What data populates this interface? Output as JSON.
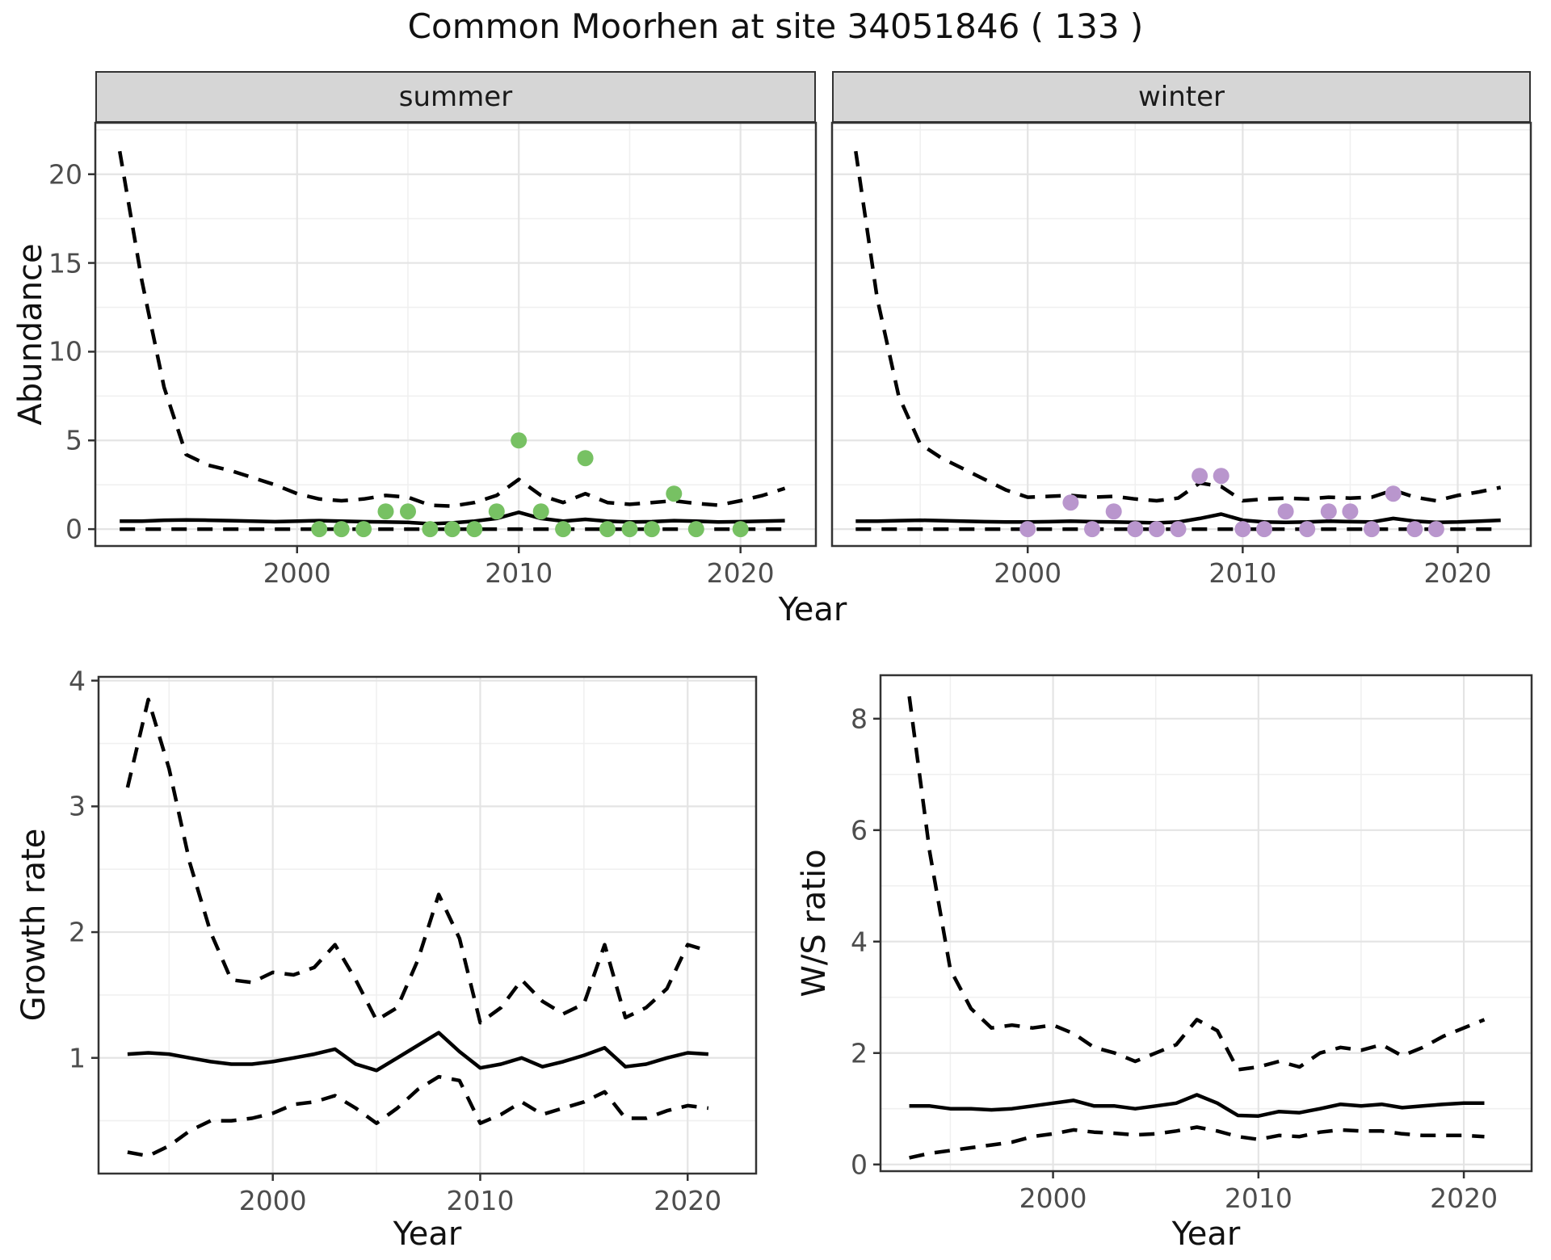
{
  "title": "Common Moorhen at site 34051846 ( 133 )",
  "facet_labels": [
    "summer",
    "winter"
  ],
  "axis_labels": {
    "abundance": "Abundance",
    "year_top": "Year",
    "growth": "Growth rate",
    "year_growth": "Year",
    "ratio": "W/S ratio",
    "year_ratio": "Year"
  },
  "colors": {
    "summer_point": "#77c163",
    "winter_point": "#b996cd",
    "line": "#000000",
    "grid_major": "#e4e4e4",
    "grid_minor": "#f0f0f0",
    "panel_border": "#333333",
    "strip_bg": "#d6d6d6",
    "strip_text": "#1a1a1a",
    "tick_text": "#4d4d4d",
    "title_text": "#111111"
  },
  "chart_data": [
    {
      "id": "abundance-summer",
      "type": "line",
      "facet": "summer",
      "xlabel": "Year",
      "ylabel": "Abundance",
      "x_domain": [
        1990.9,
        2023.4
      ],
      "y_domain": [
        -0.95,
        22.9
      ],
      "x_ticks": [
        2000,
        2010,
        2020
      ],
      "x_minor": [
        1995,
        2005,
        2015
      ],
      "y_ticks": [
        0,
        5,
        10,
        15,
        20
      ],
      "y_minor": [
        2.5,
        7.5,
        12.5,
        17.5,
        22.5
      ],
      "grid": true,
      "legend": "none",
      "line_years": [
        1992,
        1993,
        1994,
        1995,
        1996,
        1997,
        1998,
        1999,
        2000,
        2001,
        2002,
        2003,
        2004,
        2005,
        2006,
        2007,
        2008,
        2009,
        2010,
        2011,
        2012,
        2013,
        2014,
        2015,
        2016,
        2017,
        2018,
        2019,
        2020,
        2021,
        2022
      ],
      "series": [
        {
          "name": "upper_95ci",
          "style": "dashed",
          "values": [
            21.3,
            14.0,
            8.0,
            4.2,
            3.6,
            3.3,
            2.9,
            2.5,
            2.0,
            1.7,
            1.6,
            1.7,
            1.9,
            1.8,
            1.35,
            1.3,
            1.5,
            1.9,
            2.8,
            1.9,
            1.5,
            2.0,
            1.5,
            1.4,
            1.5,
            1.6,
            1.45,
            1.35,
            1.6,
            1.9,
            2.3
          ]
        },
        {
          "name": "median",
          "style": "solid",
          "values": [
            0.45,
            0.45,
            0.5,
            0.52,
            0.5,
            0.48,
            0.45,
            0.42,
            0.45,
            0.48,
            0.45,
            0.42,
            0.4,
            0.38,
            0.3,
            0.35,
            0.45,
            0.6,
            0.95,
            0.6,
            0.45,
            0.55,
            0.45,
            0.4,
            0.42,
            0.48,
            0.45,
            0.4,
            0.42,
            0.45,
            0.48
          ]
        },
        {
          "name": "lower_95ci",
          "style": "dashed",
          "values": [
            0,
            0,
            0,
            0,
            0,
            0,
            0,
            0,
            0,
            0,
            0,
            0,
            0,
            0,
            0,
            0,
            0,
            0,
            0,
            0,
            0,
            0,
            0,
            0,
            0,
            0,
            0,
            0,
            0,
            0,
            0
          ]
        }
      ],
      "points": {
        "name": "observed_counts",
        "color": "#77c163",
        "data": [
          [
            2001,
            0
          ],
          [
            2002,
            0
          ],
          [
            2003,
            0
          ],
          [
            2004,
            1
          ],
          [
            2005,
            1
          ],
          [
            2006,
            0
          ],
          [
            2007,
            0
          ],
          [
            2008,
            0
          ],
          [
            2009,
            1
          ],
          [
            2010,
            5
          ],
          [
            2011,
            1
          ],
          [
            2012,
            0
          ],
          [
            2013,
            4
          ],
          [
            2014,
            0
          ],
          [
            2015,
            0
          ],
          [
            2016,
            0
          ],
          [
            2017,
            2
          ],
          [
            2018,
            0
          ],
          [
            2020,
            0
          ]
        ]
      }
    },
    {
      "id": "abundance-winter",
      "type": "line",
      "facet": "winter",
      "xlabel": "Year",
      "ylabel": "Abundance",
      "x_domain": [
        1990.9,
        2023.4
      ],
      "y_domain": [
        -0.95,
        22.9
      ],
      "x_ticks": [
        2000,
        2010,
        2020
      ],
      "x_minor": [
        1995,
        2005,
        2015
      ],
      "y_ticks": [
        0,
        5,
        10,
        15,
        20
      ],
      "y_minor": [
        2.5,
        7.5,
        12.5,
        17.5,
        22.5
      ],
      "grid": true,
      "legend": "none",
      "line_years": [
        1992,
        1993,
        1994,
        1995,
        1996,
        1997,
        1998,
        1999,
        2000,
        2001,
        2002,
        2003,
        2004,
        2005,
        2006,
        2007,
        2008,
        2009,
        2010,
        2011,
        2012,
        2013,
        2014,
        2015,
        2016,
        2017,
        2018,
        2019,
        2020,
        2021,
        2022
      ],
      "series": [
        {
          "name": "upper_95ci",
          "style": "dashed",
          "values": [
            21.3,
            13.0,
            7.5,
            4.8,
            4.0,
            3.4,
            2.8,
            2.2,
            1.8,
            1.85,
            1.9,
            1.8,
            1.85,
            1.7,
            1.6,
            1.75,
            2.6,
            2.4,
            1.6,
            1.7,
            1.75,
            1.7,
            1.8,
            1.75,
            1.8,
            2.2,
            1.8,
            1.6,
            1.9,
            2.1,
            2.35
          ]
        },
        {
          "name": "median",
          "style": "solid",
          "values": [
            0.45,
            0.45,
            0.48,
            0.5,
            0.48,
            0.45,
            0.42,
            0.4,
            0.4,
            0.42,
            0.45,
            0.42,
            0.4,
            0.38,
            0.35,
            0.4,
            0.6,
            0.85,
            0.5,
            0.4,
            0.38,
            0.4,
            0.45,
            0.42,
            0.4,
            0.6,
            0.45,
            0.38,
            0.4,
            0.45,
            0.5
          ]
        },
        {
          "name": "lower_95ci",
          "style": "dashed",
          "values": [
            0,
            0,
            0,
            0,
            0,
            0,
            0,
            0,
            0,
            0,
            0,
            0,
            0,
            0,
            0,
            0,
            0,
            0,
            0,
            0,
            0,
            0,
            0,
            0,
            0,
            0,
            0,
            0,
            0,
            0,
            0
          ]
        }
      ],
      "points": {
        "name": "observed_counts",
        "color": "#b996cd",
        "data": [
          [
            2000,
            0
          ],
          [
            2002,
            1.5
          ],
          [
            2003,
            0
          ],
          [
            2004,
            1
          ],
          [
            2005,
            0
          ],
          [
            2006,
            0
          ],
          [
            2007,
            0
          ],
          [
            2008,
            3
          ],
          [
            2009,
            3
          ],
          [
            2010,
            0
          ],
          [
            2011,
            0
          ],
          [
            2012,
            1
          ],
          [
            2013,
            0
          ],
          [
            2014,
            1
          ],
          [
            2015,
            1
          ],
          [
            2016,
            0
          ],
          [
            2017,
            2
          ],
          [
            2018,
            0
          ],
          [
            2019,
            0
          ]
        ]
      }
    },
    {
      "id": "growth-rate",
      "type": "line",
      "xlabel": "Year",
      "ylabel": "Growth rate",
      "x_domain": [
        1991.6,
        2023.3
      ],
      "y_domain": [
        0.08,
        4.03
      ],
      "x_ticks": [
        2000,
        2010,
        2020
      ],
      "x_minor": [
        1995,
        2005,
        2015
      ],
      "y_ticks": [
        1,
        2,
        3,
        4
      ],
      "y_minor": [
        0.5,
        1.5,
        2.5,
        3.5
      ],
      "grid": true,
      "legend": "none",
      "line_years": [
        1993,
        1994,
        1995,
        1996,
        1997,
        1998,
        1999,
        2000,
        2001,
        2002,
        2003,
        2004,
        2005,
        2006,
        2007,
        2008,
        2009,
        2010,
        2011,
        2012,
        2013,
        2014,
        2015,
        2016,
        2017,
        2018,
        2019,
        2020,
        2021
      ],
      "series": [
        {
          "name": "upper_95ci",
          "style": "dashed",
          "values": [
            3.15,
            3.85,
            3.3,
            2.55,
            2.0,
            1.62,
            1.6,
            1.68,
            1.66,
            1.72,
            1.9,
            1.62,
            1.3,
            1.4,
            1.78,
            2.3,
            1.95,
            1.28,
            1.4,
            1.62,
            1.45,
            1.35,
            1.43,
            1.9,
            1.32,
            1.4,
            1.55,
            1.9,
            1.85
          ]
        },
        {
          "name": "median",
          "style": "solid",
          "values": [
            1.03,
            1.04,
            1.03,
            1.0,
            0.97,
            0.95,
            0.95,
            0.97,
            1.0,
            1.03,
            1.07,
            0.95,
            0.9,
            1.0,
            1.1,
            1.2,
            1.05,
            0.92,
            0.95,
            1.0,
            0.93,
            0.97,
            1.02,
            1.08,
            0.93,
            0.95,
            1.0,
            1.04,
            1.03
          ]
        },
        {
          "name": "lower_95ci",
          "style": "dashed",
          "values": [
            0.25,
            0.22,
            0.3,
            0.42,
            0.5,
            0.5,
            0.52,
            0.56,
            0.63,
            0.65,
            0.7,
            0.6,
            0.48,
            0.6,
            0.75,
            0.85,
            0.82,
            0.48,
            0.55,
            0.65,
            0.55,
            0.6,
            0.65,
            0.73,
            0.52,
            0.52,
            0.58,
            0.62,
            0.6
          ]
        }
      ],
      "points": {
        "name": "none",
        "color": null,
        "data": []
      }
    },
    {
      "id": "ws-ratio",
      "type": "line",
      "xlabel": "Year",
      "ylabel": "W/S ratio",
      "x_domain": [
        1991.6,
        2023.3
      ],
      "y_domain": [
        -0.12,
        8.78
      ],
      "x_ticks": [
        2000,
        2010,
        2020
      ],
      "x_minor": [
        1995,
        2005,
        2015
      ],
      "y_ticks": [
        0,
        2,
        4,
        6,
        8
      ],
      "y_minor": [
        1,
        3,
        5,
        7
      ],
      "grid": true,
      "legend": "none",
      "line_years": [
        1993,
        1994,
        1995,
        1996,
        1997,
        1998,
        1999,
        2000,
        2001,
        2002,
        2003,
        2004,
        2005,
        2006,
        2007,
        2008,
        2009,
        2010,
        2011,
        2012,
        2013,
        2014,
        2015,
        2016,
        2017,
        2018,
        2019,
        2020,
        2021
      ],
      "series": [
        {
          "name": "upper_95ci",
          "style": "dashed",
          "values": [
            8.4,
            5.6,
            3.5,
            2.8,
            2.45,
            2.5,
            2.45,
            2.5,
            2.35,
            2.1,
            2.0,
            1.85,
            2.0,
            2.15,
            2.6,
            2.4,
            1.7,
            1.75,
            1.85,
            1.75,
            2.0,
            2.1,
            2.05,
            2.15,
            1.95,
            2.1,
            2.3,
            2.45,
            2.6
          ]
        },
        {
          "name": "median",
          "style": "solid",
          "values": [
            1.05,
            1.05,
            1.0,
            1.0,
            0.98,
            1.0,
            1.05,
            1.1,
            1.15,
            1.05,
            1.05,
            1.0,
            1.05,
            1.1,
            1.25,
            1.1,
            0.88,
            0.87,
            0.95,
            0.93,
            1.0,
            1.08,
            1.05,
            1.08,
            1.02,
            1.05,
            1.08,
            1.1,
            1.1
          ]
        },
        {
          "name": "lower_95ci",
          "style": "dashed",
          "values": [
            0.12,
            0.2,
            0.25,
            0.3,
            0.35,
            0.4,
            0.5,
            0.55,
            0.62,
            0.58,
            0.56,
            0.53,
            0.55,
            0.6,
            0.67,
            0.6,
            0.5,
            0.45,
            0.52,
            0.5,
            0.58,
            0.62,
            0.6,
            0.6,
            0.55,
            0.52,
            0.52,
            0.52,
            0.5
          ]
        }
      ],
      "points": {
        "name": "none",
        "color": null,
        "data": []
      }
    }
  ]
}
